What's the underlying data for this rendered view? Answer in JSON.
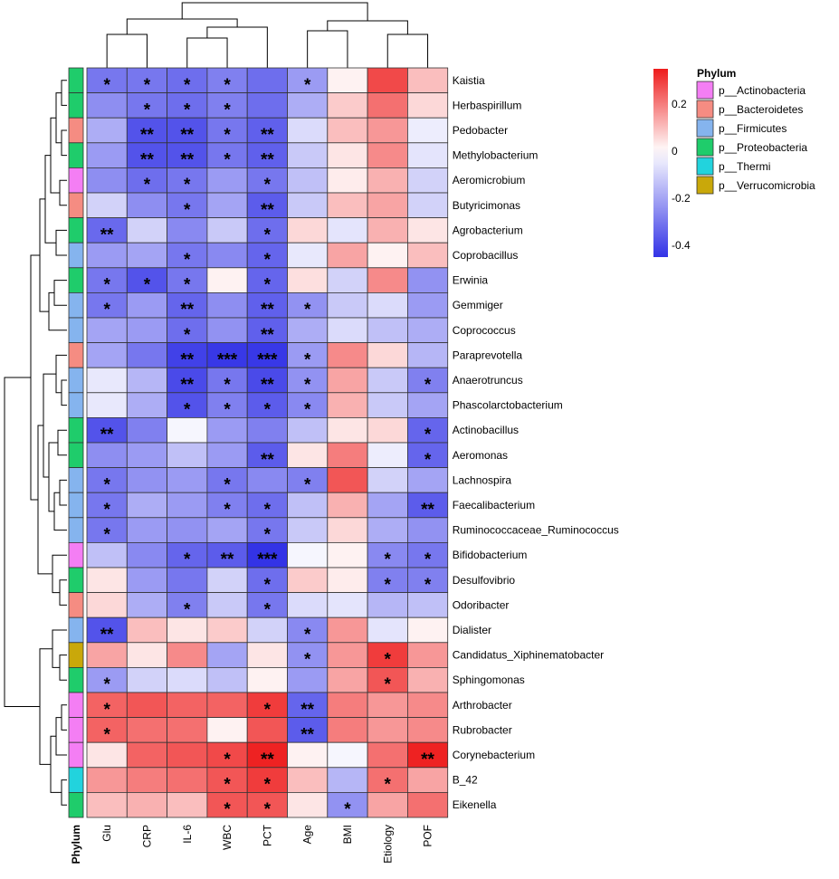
{
  "chart_data": {
    "type": "heatmap",
    "title": "",
    "columns": [
      "Glu",
      "CRP",
      "IL-6",
      "WBC",
      "PCT",
      "Age",
      "BMI",
      "Etiology",
      "POF"
    ],
    "rows": [
      {
        "name": "Kaistia",
        "phylum": "Proteobacteria",
        "values": [
          -0.3,
          -0.3,
          -0.32,
          -0.28,
          -0.32,
          -0.22,
          0.02,
          0.28,
          0.1
        ],
        "stars": [
          "*",
          "*",
          "*",
          "*",
          "",
          "*",
          "",
          "",
          ""
        ]
      },
      {
        "name": "Herbaspirillum",
        "phylum": "Proteobacteria",
        "values": [
          -0.25,
          -0.3,
          -0.32,
          -0.28,
          -0.32,
          -0.18,
          0.08,
          0.22,
          0.06
        ],
        "stars": [
          "",
          "*",
          "*",
          "*",
          "",
          "",
          "",
          "",
          ""
        ]
      },
      {
        "name": "Pedobacter",
        "phylum": "Bacteroidetes",
        "values": [
          -0.18,
          -0.38,
          -0.38,
          -0.3,
          -0.35,
          -0.08,
          0.1,
          0.16,
          -0.04
        ],
        "stars": [
          "",
          "**",
          "**",
          "*",
          "**",
          "",
          "",
          "",
          ""
        ]
      },
      {
        "name": "Methylobacterium",
        "phylum": "Proteobacteria",
        "values": [
          -0.22,
          -0.38,
          -0.38,
          -0.3,
          -0.35,
          -0.12,
          0.04,
          0.18,
          -0.06
        ],
        "stars": [
          "",
          "**",
          "**",
          "*",
          "**",
          "",
          "",
          "",
          ""
        ]
      },
      {
        "name": "Aeromicrobium",
        "phylum": "Actinobacteria",
        "values": [
          -0.25,
          -0.32,
          -0.3,
          -0.22,
          -0.3,
          -0.14,
          0.03,
          0.12,
          -0.1
        ],
        "stars": [
          "",
          "*",
          "*",
          "",
          "*",
          "",
          "",
          "",
          ""
        ]
      },
      {
        "name": "Butyricimonas",
        "phylum": "Bacteroidetes",
        "values": [
          -0.1,
          -0.25,
          -0.3,
          -0.2,
          -0.36,
          -0.12,
          0.1,
          0.14,
          -0.1
        ],
        "stars": [
          "",
          "",
          "*",
          "",
          "**",
          "",
          "",
          "",
          ""
        ]
      },
      {
        "name": "Agrobacterium",
        "phylum": "Proteobacteria",
        "values": [
          -0.33,
          -0.1,
          -0.26,
          -0.12,
          -0.32,
          0.06,
          -0.06,
          0.12,
          0.04
        ],
        "stars": [
          "**",
          "",
          "",
          "",
          "*",
          "",
          "",
          "",
          ""
        ]
      },
      {
        "name": "Coprobacillus",
        "phylum": "Firmicutes",
        "values": [
          -0.22,
          -0.2,
          -0.3,
          -0.26,
          -0.34,
          -0.05,
          0.14,
          0.02,
          0.1
        ],
        "stars": [
          "",
          "",
          "*",
          "",
          "*",
          "",
          "",
          "",
          ""
        ]
      },
      {
        "name": "Erwinia",
        "phylum": "Proteobacteria",
        "values": [
          -0.3,
          -0.38,
          -0.3,
          0.02,
          -0.34,
          0.05,
          -0.1,
          0.18,
          -0.24
        ],
        "stars": [
          "*",
          "*",
          "*",
          "",
          "*",
          "",
          "",
          "",
          ""
        ]
      },
      {
        "name": "Gemmiger",
        "phylum": "Firmicutes",
        "values": [
          -0.3,
          -0.22,
          -0.34,
          -0.25,
          -0.35,
          -0.24,
          -0.12,
          -0.08,
          -0.22
        ],
        "stars": [
          "*",
          "",
          "**",
          "",
          "**",
          "*",
          "",
          "",
          ""
        ]
      },
      {
        "name": "Coprococcus",
        "phylum": "Firmicutes",
        "values": [
          -0.2,
          -0.22,
          -0.32,
          -0.24,
          -0.35,
          -0.18,
          -0.08,
          -0.14,
          -0.18
        ],
        "stars": [
          "",
          "",
          "*",
          "",
          "**",
          "",
          "",
          "",
          ""
        ]
      },
      {
        "name": "Paraprevotella",
        "phylum": "Bacteroidetes",
        "values": [
          -0.2,
          -0.3,
          -0.42,
          -0.44,
          -0.44,
          -0.22,
          0.18,
          0.06,
          -0.16
        ],
        "stars": [
          "",
          "",
          "**",
          "***",
          "***",
          "*",
          "",
          "",
          ""
        ]
      },
      {
        "name": "Anaerotruncus",
        "phylum": "Firmicutes",
        "values": [
          -0.05,
          -0.16,
          -0.4,
          -0.3,
          -0.4,
          -0.24,
          0.14,
          -0.12,
          -0.28
        ],
        "stars": [
          "",
          "",
          "**",
          "*",
          "**",
          "*",
          "",
          "",
          "*"
        ]
      },
      {
        "name": "Phascolarctobacterium",
        "phylum": "Firmicutes",
        "values": [
          -0.05,
          -0.18,
          -0.38,
          -0.28,
          -0.36,
          -0.26,
          0.12,
          -0.12,
          -0.2
        ],
        "stars": [
          "",
          "",
          "*",
          "*",
          "*",
          "*",
          "",
          "",
          ""
        ]
      },
      {
        "name": "Actinobacillus",
        "phylum": "Proteobacteria",
        "values": [
          -0.38,
          -0.28,
          -0.02,
          -0.22,
          -0.28,
          -0.14,
          0.04,
          0.06,
          -0.34
        ],
        "stars": [
          "**",
          "",
          "",
          "",
          "",
          "",
          "",
          "",
          "*"
        ]
      },
      {
        "name": "Aeromonas",
        "phylum": "Proteobacteria",
        "values": [
          -0.25,
          -0.22,
          -0.14,
          -0.22,
          -0.36,
          0.04,
          0.2,
          -0.04,
          -0.34
        ],
        "stars": [
          "",
          "",
          "",
          "",
          "**",
          "",
          "",
          "",
          "*"
        ]
      },
      {
        "name": "Lachnospira",
        "phylum": "Firmicutes",
        "values": [
          -0.3,
          -0.24,
          -0.22,
          -0.3,
          -0.26,
          -0.28,
          0.26,
          -0.1,
          -0.2
        ],
        "stars": [
          "*",
          "",
          "",
          "*",
          "",
          "*",
          "",
          "",
          ""
        ]
      },
      {
        "name": "Faecalibacterium",
        "phylum": "Firmicutes",
        "values": [
          -0.3,
          -0.18,
          -0.22,
          -0.28,
          -0.32,
          -0.14,
          0.12,
          -0.2,
          -0.36
        ],
        "stars": [
          "*",
          "",
          "",
          "*",
          "*",
          "",
          "",
          "",
          "**"
        ]
      },
      {
        "name": "Ruminococcaceae_Ruminococcus",
        "phylum": "Firmicutes",
        "values": [
          -0.3,
          -0.22,
          -0.24,
          -0.2,
          -0.3,
          -0.12,
          0.06,
          -0.18,
          -0.24
        ],
        "stars": [
          "*",
          "",
          "",
          "",
          "*",
          "",
          "",
          "",
          ""
        ]
      },
      {
        "name": "Bifidobacterium",
        "phylum": "Actinobacteria",
        "values": [
          -0.14,
          -0.26,
          -0.34,
          -0.36,
          -0.46,
          -0.02,
          0.02,
          -0.26,
          -0.3
        ],
        "stars": [
          "",
          "",
          "*",
          "**",
          "***",
          "",
          "",
          "*",
          "*"
        ]
      },
      {
        "name": "Desulfovibrio",
        "phylum": "Proteobacteria",
        "values": [
          0.04,
          -0.22,
          -0.3,
          -0.1,
          -0.32,
          0.08,
          0.03,
          -0.28,
          -0.28
        ],
        "stars": [
          "",
          "",
          "",
          "",
          "*",
          "",
          "",
          "*",
          "*"
        ]
      },
      {
        "name": "Odoribacter",
        "phylum": "Bacteroidetes",
        "values": [
          0.06,
          -0.18,
          -0.28,
          -0.12,
          -0.3,
          -0.08,
          -0.06,
          -0.16,
          -0.14
        ],
        "stars": [
          "",
          "",
          "*",
          "",
          "*",
          "",
          "",
          "",
          ""
        ]
      },
      {
        "name": "Dialister",
        "phylum": "Firmicutes",
        "values": [
          -0.38,
          0.1,
          0.04,
          0.08,
          -0.1,
          -0.26,
          0.16,
          -0.06,
          0.02
        ],
        "stars": [
          "**",
          "",
          "",
          "",
          "",
          "*",
          "",
          "",
          ""
        ]
      },
      {
        "name": "Candidatus_Xiphinematobacter",
        "phylum": "Verrucomicrobia",
        "values": [
          0.14,
          0.04,
          0.18,
          -0.2,
          0.04,
          -0.24,
          0.16,
          0.3,
          0.16
        ],
        "stars": [
          "",
          "",
          "",
          "",
          "",
          "*",
          "",
          "*",
          ""
        ]
      },
      {
        "name": "Sphingomonas",
        "phylum": "Proteobacteria",
        "values": [
          -0.22,
          -0.1,
          -0.08,
          -0.14,
          0.02,
          -0.22,
          0.14,
          0.26,
          0.12
        ],
        "stars": [
          "*",
          "",
          "",
          "",
          "",
          "",
          "",
          "*",
          ""
        ]
      },
      {
        "name": "Arthrobacter",
        "phylum": "Actinobacteria",
        "values": [
          0.24,
          0.26,
          0.24,
          0.24,
          0.3,
          -0.34,
          0.2,
          0.16,
          0.18
        ],
        "stars": [
          "*",
          "",
          "",
          "",
          "*",
          "**",
          "",
          "",
          ""
        ]
      },
      {
        "name": "Rubrobacter",
        "phylum": "Actinobacteria",
        "values": [
          0.24,
          0.22,
          0.22,
          0.02,
          0.26,
          -0.36,
          0.2,
          0.16,
          0.18
        ],
        "stars": [
          "*",
          "",
          "",
          "",
          "",
          "**",
          "",
          "",
          ""
        ]
      },
      {
        "name": "Corynebacterium",
        "phylum": "Actinobacteria",
        "values": [
          0.04,
          0.24,
          0.26,
          0.28,
          0.34,
          0.02,
          -0.02,
          0.22,
          0.34
        ],
        "stars": [
          "",
          "",
          "",
          "*",
          "**",
          "",
          "",
          "",
          "**"
        ]
      },
      {
        "name": "B_42",
        "phylum": "Thermi",
        "values": [
          0.16,
          0.2,
          0.22,
          0.26,
          0.3,
          0.1,
          -0.16,
          0.22,
          0.14
        ],
        "stars": [
          "",
          "",
          "",
          "*",
          "*",
          "",
          "",
          "*",
          ""
        ]
      },
      {
        "name": "Eikenella",
        "phylum": "Proteobacteria",
        "values": [
          0.1,
          0.12,
          0.1,
          0.26,
          0.26,
          0.04,
          -0.24,
          0.14,
          0.22
        ],
        "stars": [
          "",
          "",
          "",
          "*",
          "*",
          "",
          "*",
          "",
          ""
        ]
      }
    ],
    "color_scale": {
      "min": -0.45,
      "mid": 0,
      "max": 0.35,
      "low_color": "#3333e6",
      "mid_color": "#ffffff",
      "high_color": "#ee1c1c",
      "ticks": [
        0.2,
        0,
        -0.2,
        -0.4
      ],
      "tick_labels": [
        "0.2",
        "0",
        "-0.2",
        "-0.4"
      ]
    },
    "phylum_axis_label": "Phylum",
    "legend": {
      "title": "Phylum",
      "entries": [
        {
          "key": "Actinobacteria",
          "label": "p__Actinobacteria",
          "color": "#f47ef4"
        },
        {
          "key": "Bacteroidetes",
          "label": "p__Bacteroidetes",
          "color": "#f58c82"
        },
        {
          "key": "Firmicutes",
          "label": "p__Firmicutes",
          "color": "#85b4ee"
        },
        {
          "key": "Proteobacteria",
          "label": "p__Proteobacteria",
          "color": "#1fcc6b"
        },
        {
          "key": "Thermi",
          "label": "p__Thermi",
          "color": "#22d3dd"
        },
        {
          "key": "Verrucomicrobia",
          "label": "p__Verrucomicrobia",
          "color": "#c9a80a"
        }
      ]
    }
  }
}
